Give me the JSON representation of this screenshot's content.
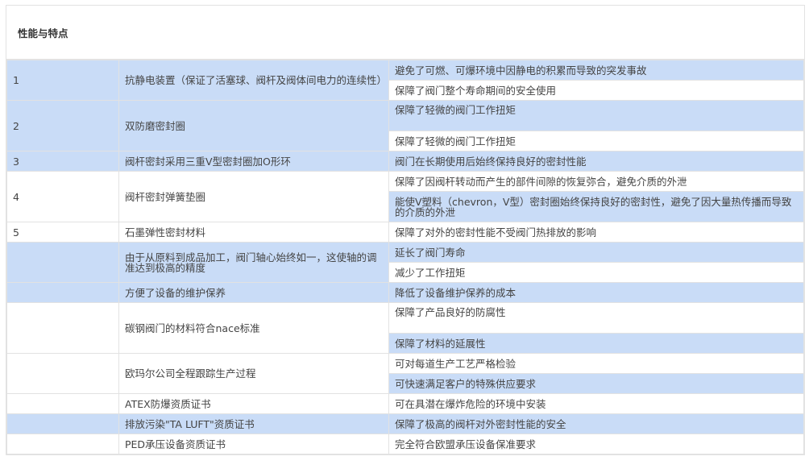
{
  "section_title": "性能与特点",
  "colors": {
    "highlight": "#c9dcf7",
    "border": "#e2e2e2",
    "text": "#444444"
  },
  "rows": [
    {
      "num": "1",
      "feature": "抗静电装置（保证了活塞球、阀杆及阀体间电力的连续性）",
      "left_bg": "blue",
      "benefits": [
        {
          "text": "避免了可燃、可爆环境中因静电的积累而导致的突发事故",
          "bg": "blue",
          "h": 26
        },
        {
          "text": "保障了阀门整个寿命期间的安全使用",
          "bg": "white",
          "h": 26
        }
      ]
    },
    {
      "num": "2",
      "feature": "双防磨密封圈",
      "left_bg": "blue",
      "benefits": [
        {
          "text": "保障了轻微的阀门工作扭矩",
          "bg": "blue",
          "h": 39,
          "top": true
        },
        {
          "text": "保障了轻微的阀门工作扭矩",
          "bg": "white",
          "h": 26
        }
      ]
    },
    {
      "num": "3",
      "feature": "阀杆密封采用三重V型密封圈加O形环",
      "left_bg": "blue",
      "benefits": [
        {
          "text": "阀门在长期使用后始终保持良好的密封性能",
          "bg": "blue",
          "h": 26
        }
      ]
    },
    {
      "num": "4",
      "feature": "阀杆密封弹簧垫圈",
      "left_bg": "white",
      "benefits": [
        {
          "text": "保障了因阀杆转动而产生的部件间隙的恢复弥合，避免介质的外泄",
          "bg": "white",
          "h": 26
        },
        {
          "text": "能使V塑料（chevron，V型）密封圈始终保持良好的密封性，避免了因大量热传播而导致的介质的外泄",
          "bg": "blue",
          "h": 39
        }
      ]
    },
    {
      "num": "5",
      "feature": "石墨弹性密封材料",
      "left_bg": "white",
      "benefits": [
        {
          "text": "保障了对外的密封性能不受阀门热排放的影响",
          "bg": "white",
          "h": 26
        }
      ]
    },
    {
      "num": "",
      "feature": "由于从原料到成品加工，阀门轴心始终如一，这使轴的调准达到极高的精度",
      "left_bg": "blue",
      "benefits": [
        {
          "text": "延长了阀门寿命",
          "bg": "blue",
          "h": 26
        },
        {
          "text": "减少了工作扭矩",
          "bg": "white",
          "h": 26
        }
      ]
    },
    {
      "num": "",
      "feature": "方便了设备的维护保养",
      "left_bg": "blue",
      "benefits": [
        {
          "text": "降低了设备维护保养的成本",
          "bg": "blue",
          "h": 26
        }
      ]
    },
    {
      "num": "",
      "feature": "碳钢阀门的材料符合nace标准",
      "left_bg": "white",
      "benefits": [
        {
          "text": "保障了产品良好的防腐性",
          "bg": "white",
          "h": 39,
          "top": true
        },
        {
          "text": "保障了材料的延展性",
          "bg": "blue",
          "h": 26
        }
      ]
    },
    {
      "num": "",
      "feature": "欧玛尔公司全程跟踪生产过程",
      "left_bg": "white",
      "benefits": [
        {
          "text": "可对每道生产工艺严格检验",
          "bg": "white",
          "h": 26
        },
        {
          "text": "可快速满足客户的特殊供应要求",
          "bg": "blue",
          "h": 26
        }
      ]
    },
    {
      "num": "",
      "feature": "ATEX防爆资质证书",
      "left_bg": "white",
      "benefits": [
        {
          "text": "可在具潜在爆炸危险的环境中安装",
          "bg": "white",
          "h": 26
        }
      ]
    },
    {
      "num": "",
      "feature": "排放污染\"TA LUFT\"资质证书",
      "left_bg": "blue",
      "benefits": [
        {
          "text": "保障了极高的阀杆对外密封性能的安全",
          "bg": "blue",
          "h": 26
        }
      ]
    },
    {
      "num": "",
      "feature": "PED承压设备资质证书",
      "left_bg": "white",
      "benefits": [
        {
          "text": "完全符合欧盟承压设备保准要求",
          "bg": "white",
          "h": 26
        }
      ]
    }
  ]
}
